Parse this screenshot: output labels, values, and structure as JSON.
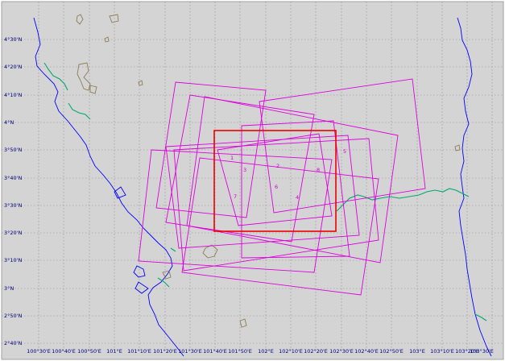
{
  "colors": {
    "frame_bg": "#d4d4d4",
    "grid": "#8a8a8a",
    "coast": "#0000ff",
    "river_green": "#00a870",
    "island_brown": "#8b7d55",
    "footprint_magenta": "#dd00dd",
    "selected_red": "#ee0000",
    "label_text": "#000080",
    "scene_label": "#cc00cc"
  },
  "latitude_labels": [
    "4°30'N",
    "4°20'N",
    "4°10'N",
    "4°N",
    "3°50'N",
    "3°40'N",
    "3°30'N",
    "3°20'N",
    "3°10'N",
    "3°N",
    "2°50'N",
    "2°40'N"
  ],
  "longitude_labels": [
    "100°30'E",
    "100°40'E",
    "100°50'E",
    "101°E",
    "101°10'E",
    "101°20'E",
    "101°30'E",
    "101°40'E",
    "101°50'E",
    "102°E",
    "102°10'E",
    "102°20'E",
    "102°30'E",
    "102°40'E",
    "102°50'E",
    "103°E",
    "103°10'E",
    "103°20'E",
    "103°30'E"
  ],
  "scene_labels": [
    "1",
    "2",
    "3",
    "4",
    "5",
    "6",
    "7",
    "8"
  ]
}
